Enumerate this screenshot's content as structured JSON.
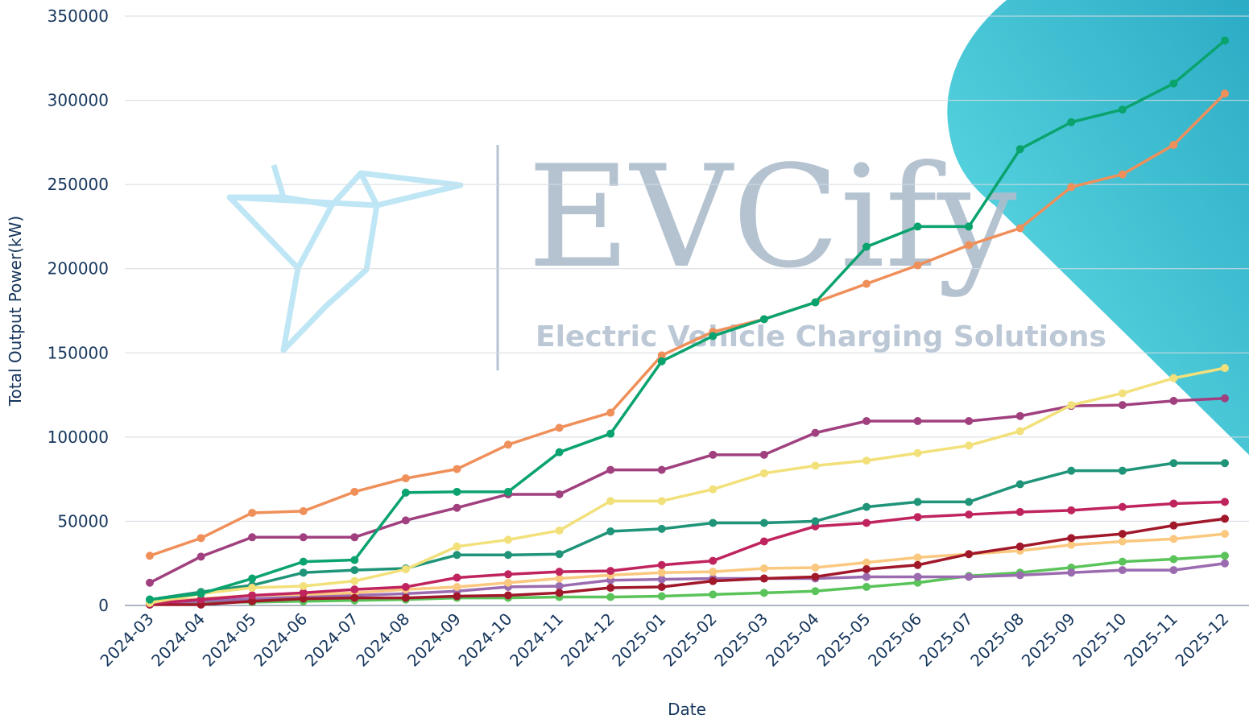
{
  "watermark": {
    "brand": "EVCify",
    "tagline": "Electric Vehicle Charging Solutions"
  },
  "chart_data": {
    "type": "line",
    "xlabel": "Date",
    "ylabel": "Total Output Power(kW)",
    "categories": [
      "2024-03",
      "2024-04",
      "2024-05",
      "2024-06",
      "2024-07",
      "2024-08",
      "2024-09",
      "2024-10",
      "2024-11",
      "2024-12",
      "2025-01",
      "2025-02",
      "2025-03",
      "2025-04",
      "2025-05",
      "2025-06",
      "2025-07",
      "2025-08",
      "2025-09",
      "2025-10",
      "2025-11",
      "2025-12"
    ],
    "ylim": [
      0,
      350000
    ],
    "yticks": [
      0,
      50000,
      100000,
      150000,
      200000,
      250000,
      300000,
      350000
    ],
    "grid": true,
    "series": [
      {
        "color": "#0aa36e",
        "values": [
          3500,
          7000,
          16000,
          26000,
          27000,
          67000,
          67500,
          67500,
          91000,
          102000,
          145000,
          160000,
          170000,
          180000,
          213000,
          225000,
          225000,
          271000,
          287000,
          294500,
          310000,
          335500
        ]
      },
      {
        "color": "#ef8f5a",
        "values": [
          29500,
          40000,
          55000,
          56000,
          67500,
          75500,
          81000,
          95500,
          105500,
          114500,
          148500,
          162500,
          170000,
          180000,
          191000,
          202000,
          214000,
          224000,
          248500,
          256000,
          273500,
          304000
        ]
      },
      {
        "color": "#f2e07a",
        "values": [
          1500,
          7000,
          10500,
          11500,
          14500,
          21500,
          35000,
          39000,
          44500,
          62000,
          62000,
          69000,
          78500,
          83000,
          86000,
          90500,
          95000,
          103500,
          119000,
          126000,
          135000,
          141000
        ]
      },
      {
        "color": "#a0407f",
        "values": [
          13500,
          29000,
          40500,
          40500,
          40500,
          50500,
          58000,
          66000,
          66000,
          80500,
          80500,
          89500,
          89500,
          102500,
          109500,
          109500,
          109500,
          112500,
          118500,
          119000,
          121500,
          123000
        ]
      },
      {
        "color": "#1f9478",
        "values": [
          3500,
          8000,
          12000,
          19500,
          21000,
          22000,
          30000,
          30000,
          30500,
          44000,
          45500,
          49000,
          49000,
          50000,
          58500,
          61500,
          61500,
          72000,
          80000,
          80000,
          84500,
          84500
        ]
      },
      {
        "color": "#c0245e",
        "values": [
          1000,
          3500,
          6000,
          7500,
          9500,
          11000,
          16500,
          18500,
          20000,
          20500,
          24000,
          26500,
          38000,
          47000,
          49000,
          52500,
          54000,
          55500,
          56500,
          58500,
          60500,
          61500
        ]
      },
      {
        "color": "#a0182a",
        "values": [
          500,
          500,
          2500,
          4000,
          4500,
          4500,
          5500,
          6000,
          7500,
          10500,
          11000,
          14500,
          16000,
          17000,
          21500,
          24000,
          30500,
          35000,
          40000,
          42500,
          47500,
          51500
        ]
      },
      {
        "color": "#fac87f",
        "values": [
          2000,
          4000,
          6000,
          6500,
          7500,
          9500,
          11000,
          13500,
          16000,
          18000,
          19500,
          20000,
          22000,
          22500,
          25500,
          28500,
          30500,
          32500,
          36000,
          38000,
          39500,
          42500
        ]
      },
      {
        "color": "#9b6bb0",
        "values": [
          1000,
          2500,
          4000,
          5000,
          6000,
          7000,
          8500,
          11000,
          11500,
          15000,
          15500,
          16000,
          16000,
          16000,
          17000,
          17000,
          17000,
          18000,
          19500,
          21000,
          21000,
          25000
        ]
      },
      {
        "color": "#5ac45a",
        "values": [
          1000,
          2000,
          2000,
          2500,
          3000,
          3500,
          4500,
          4500,
          5000,
          5000,
          5500,
          6500,
          7500,
          8500,
          11000,
          13500,
          17500,
          19500,
          22500,
          26000,
          27500,
          29500
        ]
      }
    ]
  }
}
